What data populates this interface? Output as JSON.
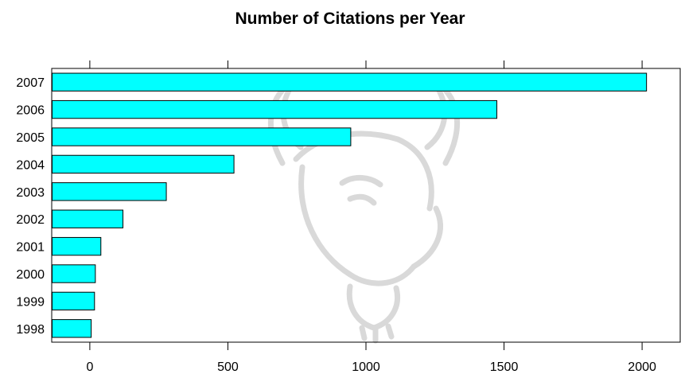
{
  "chart_data": {
    "type": "bar",
    "orientation": "horizontal",
    "title": "Number of Citations per Year",
    "xlabel": "",
    "ylabel": "",
    "categories": [
      "2007",
      "2006",
      "2005",
      "2004",
      "2003",
      "2002",
      "2001",
      "2000",
      "1999",
      "1998"
    ],
    "values": [
      2016,
      1474,
      945,
      522,
      277,
      120,
      40,
      20,
      17,
      5
    ],
    "xlim": [
      -138,
      2138
    ],
    "xticks": [
      0,
      500,
      1000,
      1500,
      2000
    ],
    "tick_labels": [
      "0",
      "500",
      "1000",
      "1500",
      "2000"
    ],
    "grid": false,
    "legend": "none",
    "bar_color": "#00ffff",
    "bar_edge_color": "#000000",
    "background_watermark": "gnu-head-logo"
  }
}
